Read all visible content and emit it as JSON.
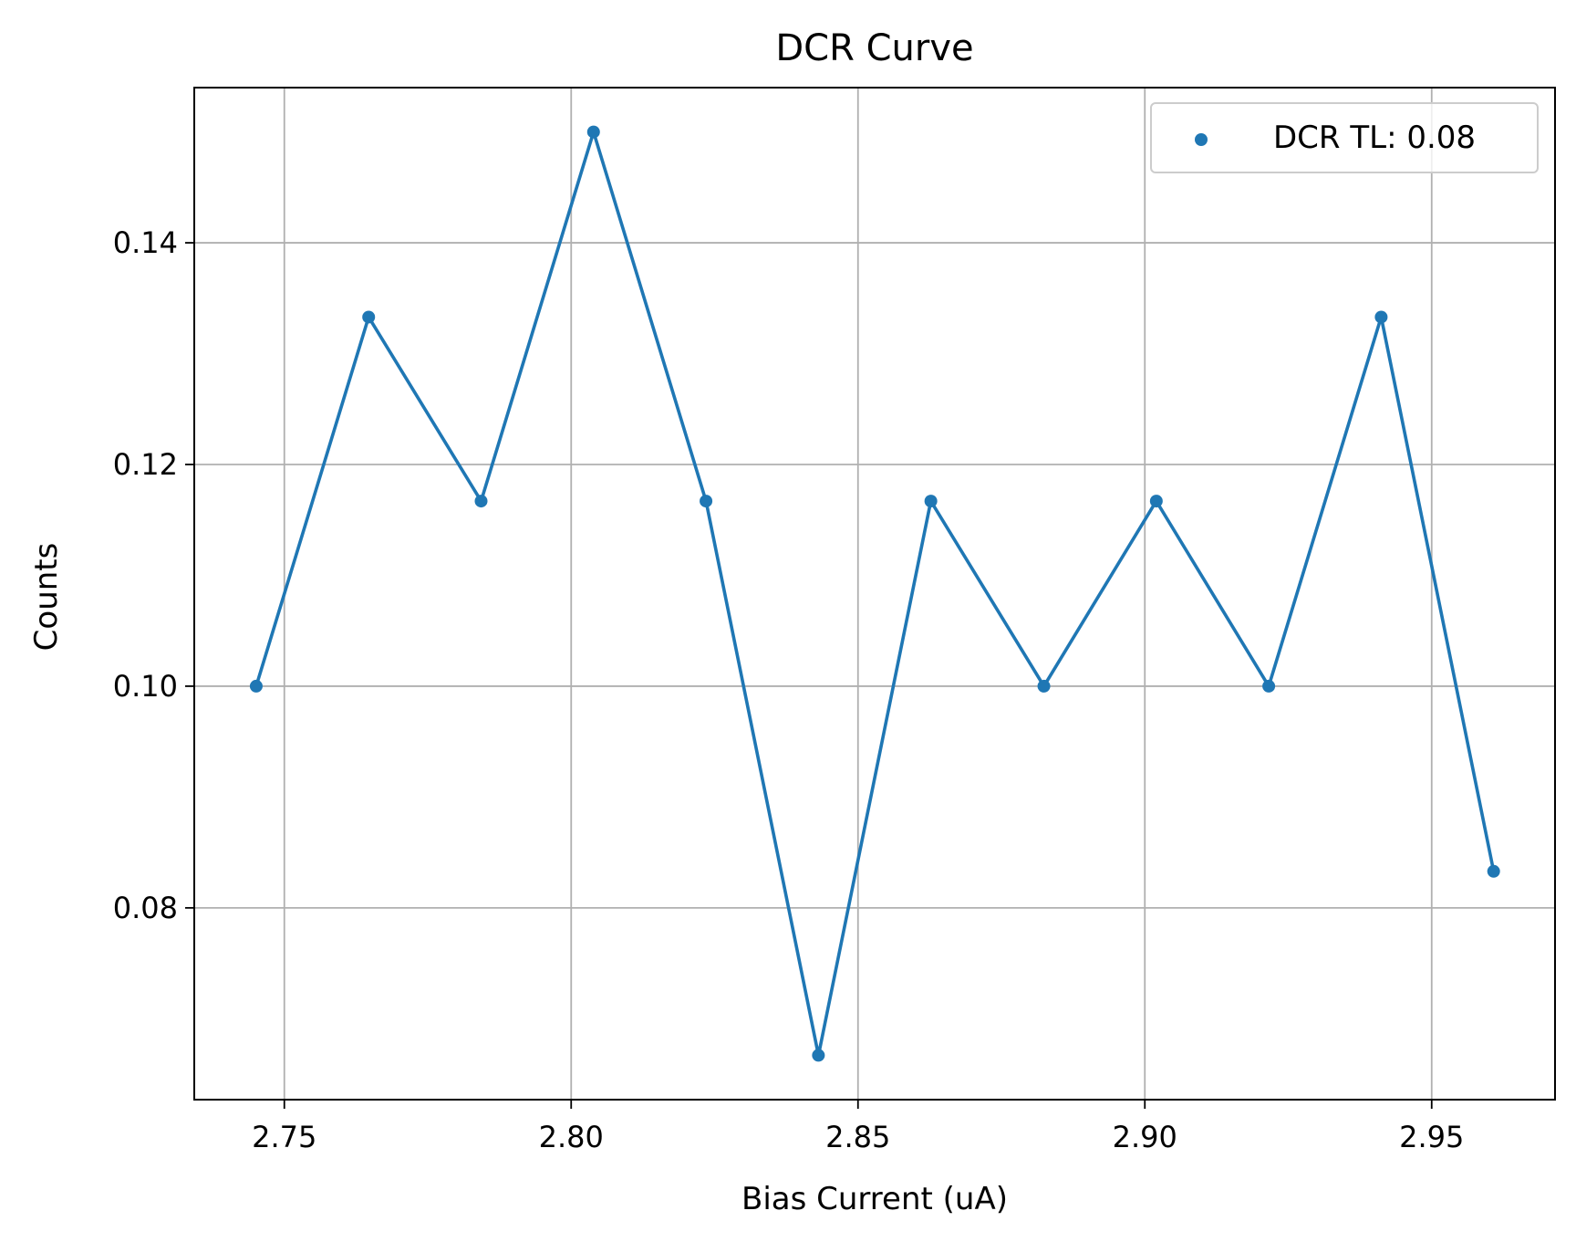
{
  "chart_data": {
    "type": "line",
    "title": "DCR Curve",
    "xlabel": "Bias Current (uA)",
    "ylabel": "Counts",
    "xlim": [
      2.7343,
      2.9715
    ],
    "ylim": [
      0.0627,
      0.154
    ],
    "xticks": [
      2.75,
      2.8,
      2.85,
      2.9,
      2.95
    ],
    "xtick_labels": [
      "2.75",
      "2.80",
      "2.85",
      "2.90",
      "2.95"
    ],
    "yticks": [
      0.08,
      0.1,
      0.12,
      0.14
    ],
    "ytick_labels": [
      "0.08",
      "0.10",
      "0.12",
      "0.14"
    ],
    "grid": true,
    "legend_position": "top-right",
    "series": [
      {
        "name": "DCR TL: 0.08",
        "color": "#1f77b4",
        "marker": "circle",
        "x": [
          2.7451,
          2.7647,
          2.7843,
          2.8039,
          2.8235,
          2.8431,
          2.8627,
          2.8824,
          2.902,
          2.9216,
          2.9412,
          2.9608
        ],
        "y": [
          0.1,
          0.1333,
          0.1167,
          0.15,
          0.1167,
          0.0667,
          0.1167,
          0.1,
          0.1167,
          0.1,
          0.1333,
          0.0833
        ]
      }
    ]
  }
}
